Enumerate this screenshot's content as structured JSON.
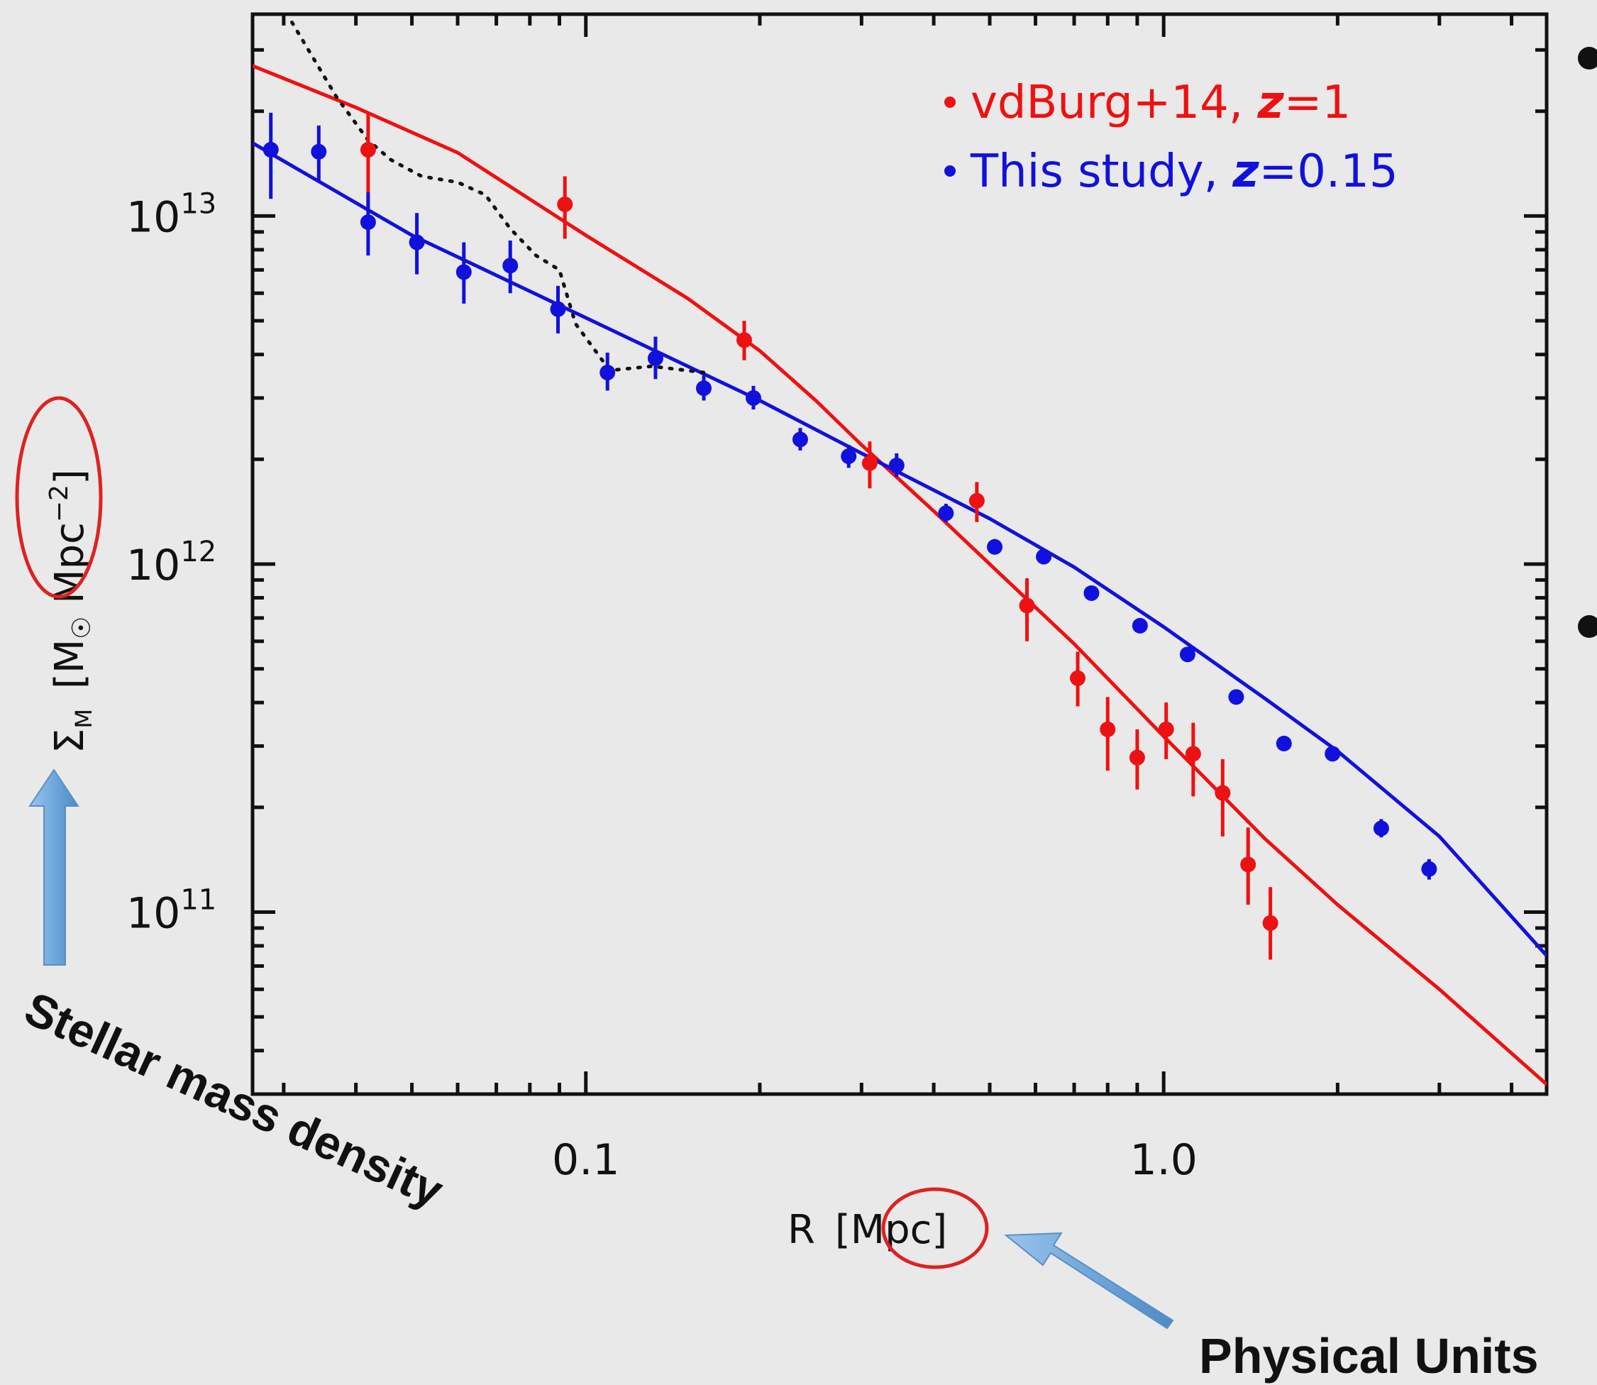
{
  "chart_data": {
    "type": "scatter",
    "title": "",
    "xlabel": "R",
    "xlabel_unit": "[Mpc]",
    "ylabel": "Σ",
    "ylabel_sub": "M",
    "ylabel_unit_open": "[M",
    "ylabel_unit_mid": " Mpc",
    "ylabel_unit_exp": "−2",
    "ylabel_unit_close": "]",
    "xscale": "log",
    "yscale": "log",
    "xlim": [
      0.0265,
      4.6
    ],
    "ylim": [
      30000000000,
      38000000000000
    ],
    "x_ticks": [
      {
        "value": 0.1,
        "label": "0.1"
      },
      {
        "value": 1.0,
        "label": "1.0"
      }
    ],
    "y_ticks": [
      {
        "value": 100000000000,
        "base": "10",
        "exp": "11"
      },
      {
        "value": 1000000000000,
        "base": "10",
        "exp": "12"
      },
      {
        "value": 10000000000000,
        "base": "10",
        "exp": "13"
      }
    ],
    "legend": {
      "placement": "top-right"
    },
    "series": [
      {
        "name": "vdBurg+14, ",
        "z_label": "z",
        "z_value": "=1",
        "color": "#ee1111",
        "points": [
          {
            "x": 0.042,
            "y": 15500000000000,
            "err": [
              10500000000000,
              19800000000000
            ]
          },
          {
            "x": 0.092,
            "y": 10800000000000,
            "err": [
              8600000000000,
              13000000000000
            ]
          },
          {
            "x": 0.188,
            "y": 4400000000000,
            "err": [
              3850000000000,
              5000000000000
            ]
          },
          {
            "x": 0.31,
            "y": 1950000000000,
            "err": [
              1650000000000,
              2250000000000
            ]
          },
          {
            "x": 0.475,
            "y": 1520000000000,
            "err": [
              1320000000000,
              1720000000000
            ]
          },
          {
            "x": 0.58,
            "y": 760000000000,
            "err": [
              600000000000,
              910000000000
            ]
          },
          {
            "x": 0.71,
            "y": 470000000000,
            "err": [
              390000000000,
              560000000000
            ]
          },
          {
            "x": 0.8,
            "y": 335000000000,
            "err": [
              255000000000,
              415000000000
            ]
          },
          {
            "x": 0.9,
            "y": 278000000000,
            "err": [
              225000000000,
              335000000000
            ]
          },
          {
            "x": 1.01,
            "y": 335000000000,
            "err": [
              275000000000,
              400000000000
            ]
          },
          {
            "x": 1.125,
            "y": 285000000000,
            "err": [
              215000000000,
              350000000000
            ]
          },
          {
            "x": 1.265,
            "y": 220000000000,
            "err": [
              165000000000,
              275000000000
            ]
          },
          {
            "x": 1.4,
            "y": 137000000000,
            "err": [
              105000000000,
              175000000000
            ]
          },
          {
            "x": 1.53,
            "y": 93000000000,
            "err": [
              73000000000,
              118000000000
            ]
          }
        ]
      },
      {
        "name": "This study, ",
        "z_label": "z",
        "z_value": "=0.15",
        "color": "#1111dd",
        "points": [
          {
            "x": 0.0285,
            "y": 15500000000000,
            "err": [
              11200000000000,
              19800000000000
            ]
          },
          {
            "x": 0.0345,
            "y": 15300000000000,
            "err": [
              12600000000000,
              18200000000000
            ]
          },
          {
            "x": 0.042,
            "y": 9600000000000,
            "err": [
              7700000000000,
              11700000000000
            ]
          },
          {
            "x": 0.051,
            "y": 8400000000000,
            "err": [
              6800000000000,
              10200000000000
            ]
          },
          {
            "x": 0.0615,
            "y": 6900000000000,
            "err": [
              5600000000000,
              8400000000000
            ]
          },
          {
            "x": 0.074,
            "y": 7200000000000,
            "err": [
              6000000000000,
              8500000000000
            ]
          },
          {
            "x": 0.0895,
            "y": 5400000000000,
            "err": [
              4600000000000,
              6300000000000
            ]
          },
          {
            "x": 0.109,
            "y": 3550000000000,
            "err": [
              3150000000000,
              4050000000000
            ]
          },
          {
            "x": 0.132,
            "y": 3900000000000,
            "err": [
              3400000000000,
              4500000000000
            ]
          },
          {
            "x": 0.16,
            "y": 3200000000000,
            "err": [
              2950000000000,
              3480000000000
            ]
          },
          {
            "x": 0.195,
            "y": 3000000000000,
            "err": [
              2780000000000,
              3250000000000
            ]
          },
          {
            "x": 0.235,
            "y": 2280000000000,
            "err": [
              2120000000000,
              2460000000000
            ]
          },
          {
            "x": 0.285,
            "y": 2040000000000,
            "err": [
              1890000000000,
              2200000000000
            ]
          },
          {
            "x": 0.345,
            "y": 1920000000000,
            "err": [
              1780000000000,
              2080000000000
            ]
          },
          {
            "x": 0.42,
            "y": 1400000000000,
            "err": [
              1320000000000,
              1490000000000
            ]
          },
          {
            "x": 0.51,
            "y": 1120000000000,
            "err": [
              1070000000000,
              1180000000000
            ]
          },
          {
            "x": 0.62,
            "y": 1050000000000,
            "err": [
              1000000000000,
              1100000000000
            ]
          },
          {
            "x": 0.75,
            "y": 825000000000,
            "err": [
              795000000000,
              855000000000
            ]
          },
          {
            "x": 0.91,
            "y": 665000000000,
            "err": [
              640000000000,
              690000000000
            ]
          },
          {
            "x": 1.1,
            "y": 550000000000,
            "err": [
              530000000000,
              570000000000
            ]
          },
          {
            "x": 1.335,
            "y": 415000000000,
            "err": [
              400000000000,
              430000000000
            ]
          },
          {
            "x": 1.615,
            "y": 305000000000,
            "err": [
              293000000000,
              318000000000
            ]
          },
          {
            "x": 1.96,
            "y": 285000000000,
            "err": [
              274000000000,
              296000000000
            ]
          },
          {
            "x": 2.38,
            "y": 174000000000,
            "err": [
              164000000000,
              185000000000
            ]
          },
          {
            "x": 2.88,
            "y": 133000000000,
            "err": [
              124000000000,
              142000000000
            ]
          }
        ]
      }
    ],
    "fit_lines": [
      {
        "color": "#ee1111",
        "x": [
          0.0265,
          0.04,
          0.06,
          0.1,
          0.15,
          0.2,
          0.25,
          0.3,
          0.4,
          0.5,
          0.7,
          1.0,
          1.5,
          2.0,
          3.0,
          4.6
        ],
        "y": [
          27000000000000,
          20500000000000,
          15200000000000,
          8800000000000,
          5800000000000,
          4100000000000,
          2950000000000,
          2200000000000,
          1420000000000,
          1000000000000,
          590000000000,
          320000000000,
          162000000000,
          105000000000,
          60000000000,
          32000000000
        ]
      },
      {
        "color": "#1111dd",
        "x": [
          0.0265,
          0.05,
          0.1,
          0.2,
          0.3,
          0.5,
          0.7,
          1.0,
          1.5,
          2.0,
          3.0,
          4.6
        ],
        "y": [
          16200000000000,
          8800000000000,
          5100000000000,
          2950000000000,
          2080000000000,
          1350000000000,
          980000000000,
          660000000000,
          410000000000,
          290000000000,
          165000000000,
          75000000000
        ]
      },
      {
        "color": "#111111",
        "style": "dotted",
        "x": [
          0.031,
          0.037,
          0.042,
          0.046,
          0.052,
          0.06,
          0.067,
          0.074,
          0.082,
          0.09,
          0.096,
          0.11,
          0.13,
          0.16
        ],
        "y": [
          36000000000000,
          22000000000000,
          16500000000000,
          14500000000000,
          13000000000000,
          12500000000000,
          11500000000000,
          9200000000000,
          7700000000000,
          7000000000000,
          4900000000000,
          3600000000000,
          3700000000000,
          3550000000000
        ]
      }
    ]
  },
  "annotations": {
    "stellar": "Stellar mass density",
    "physical": "Physical Units",
    "arrow_color": "#6fa8dc",
    "ellipse_color": "#dd2222"
  }
}
